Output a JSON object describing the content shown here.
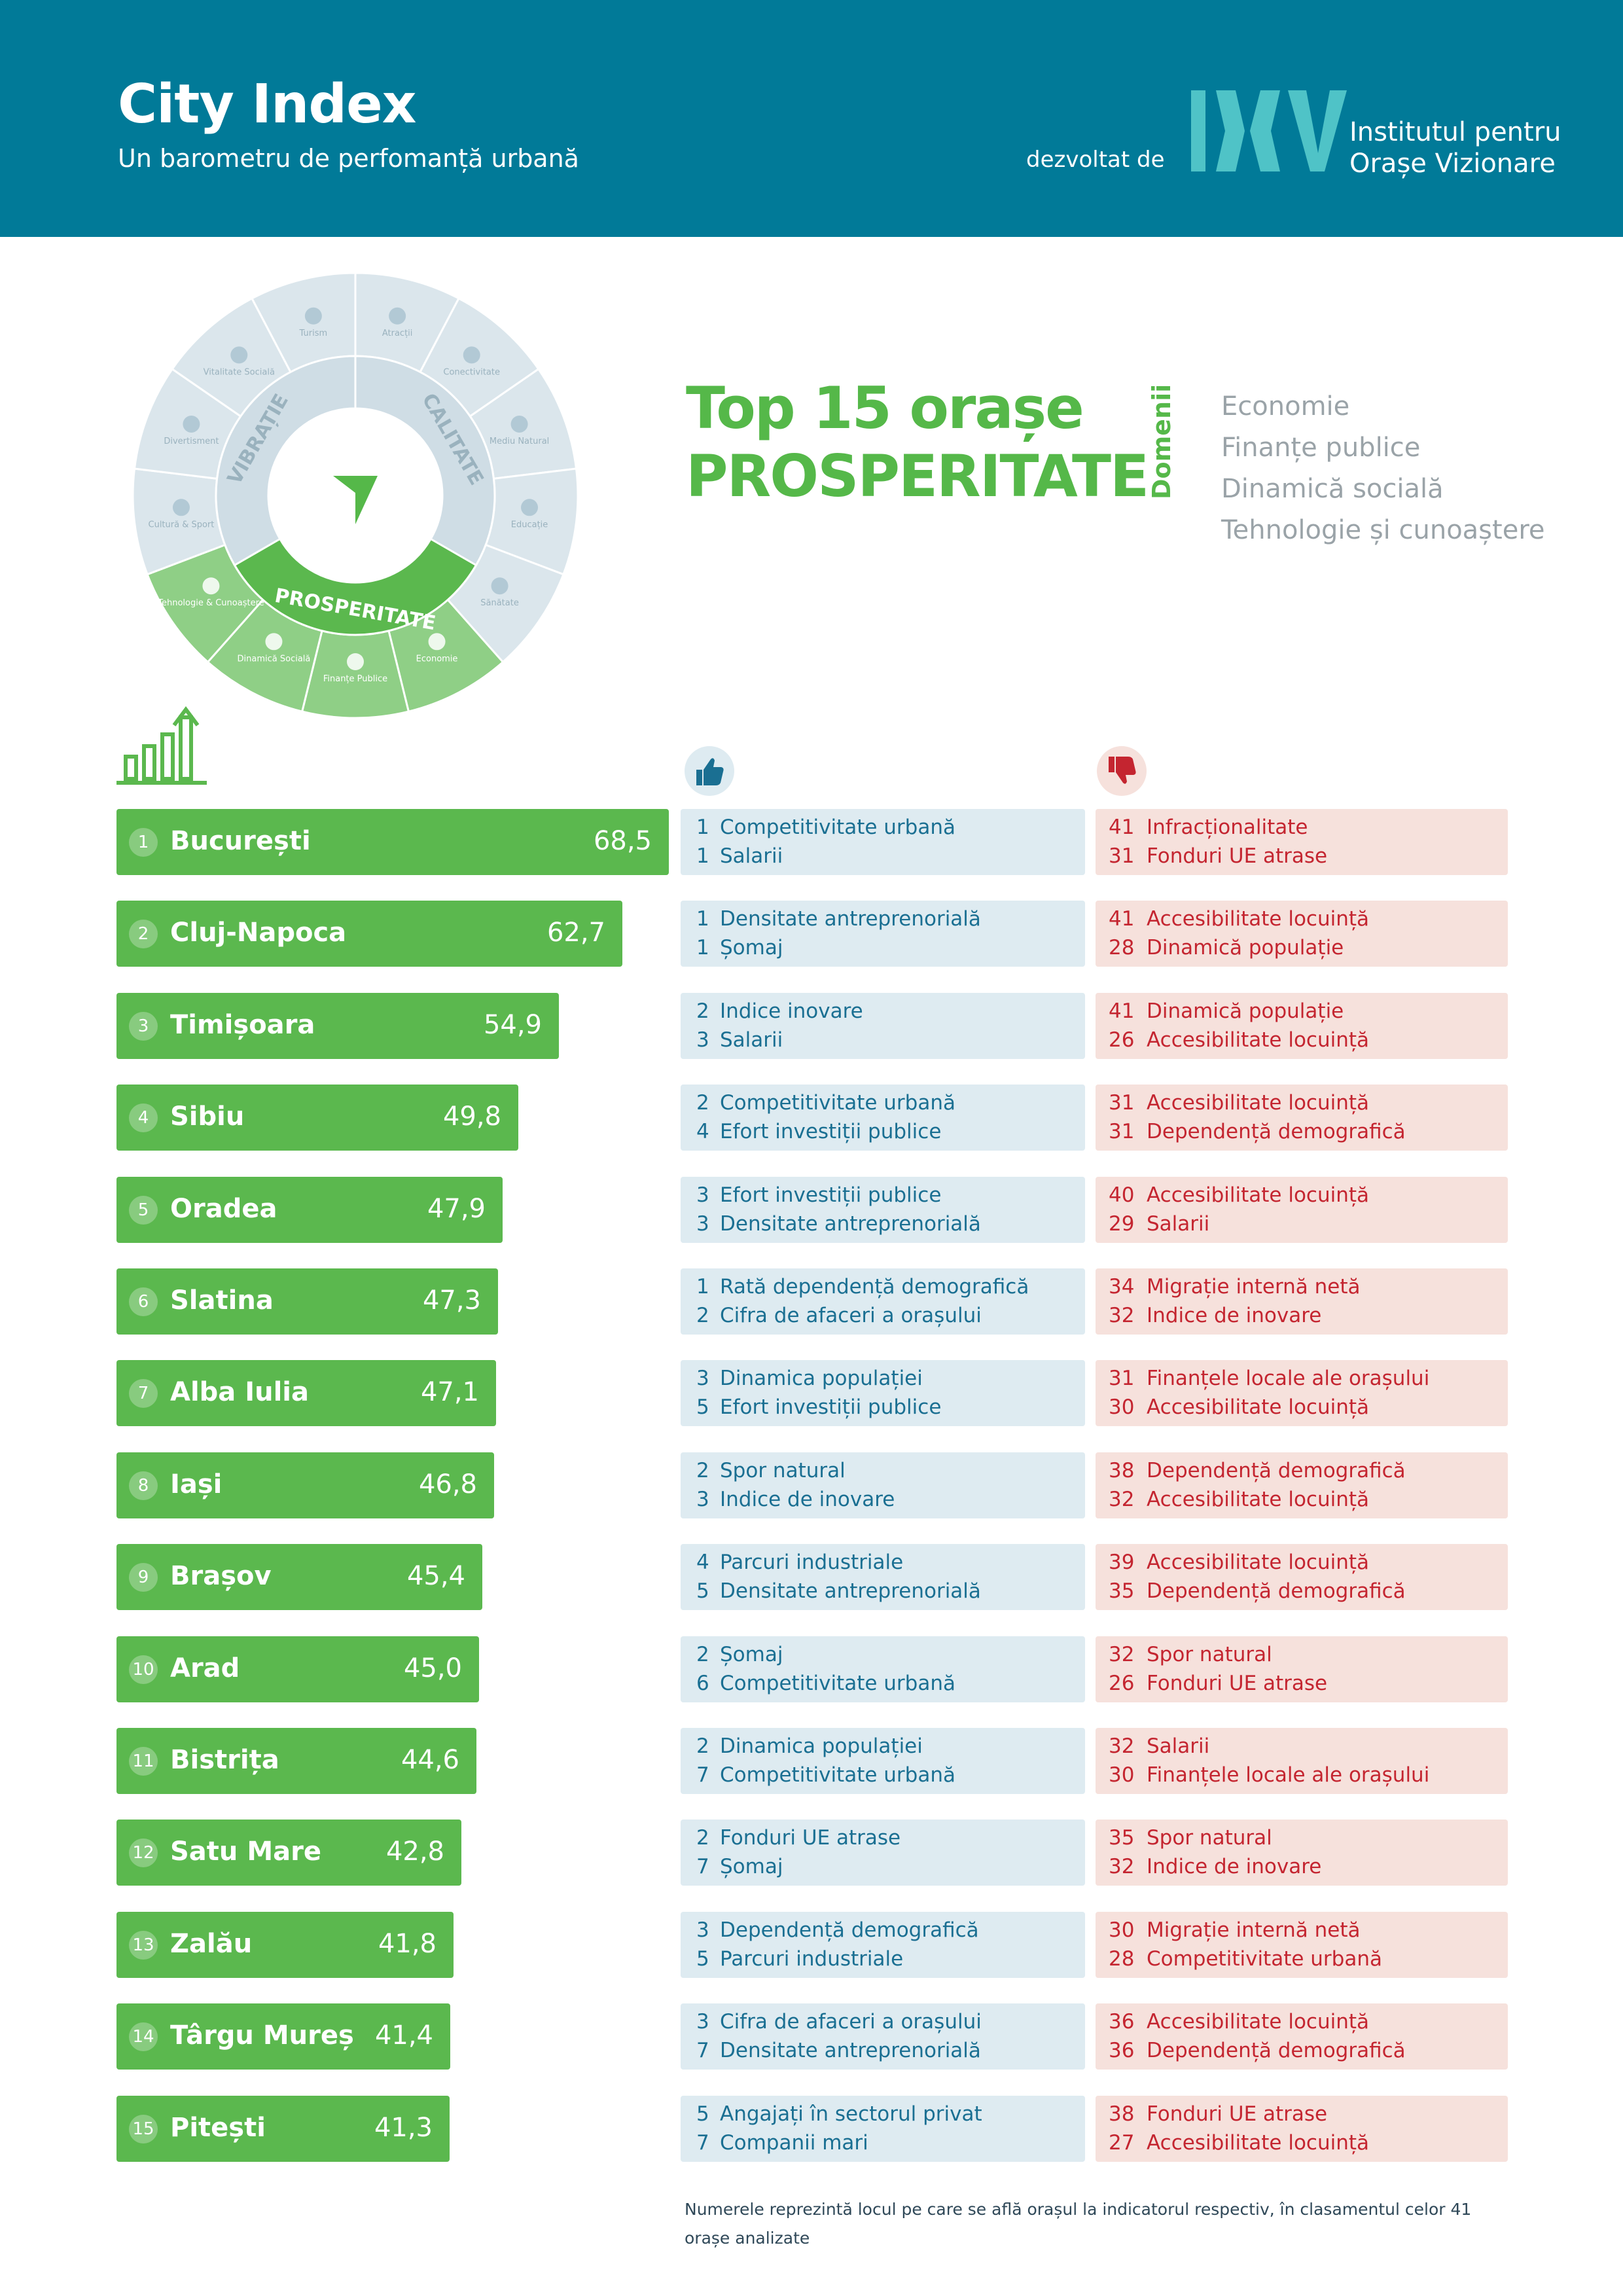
{
  "header": {
    "title": "City Index",
    "subtitle": "Un barometru de perfomanță urbană",
    "developed_by": "dezvoltat de",
    "org_name_line1": "Institutul pentru",
    "org_name_line2": "Orașe Vizionare",
    "logo_text": "IOV",
    "background_color": "#017a98"
  },
  "wheel": {
    "center_icon": "arrow-down-icon",
    "pillars": [
      "VIBRAȚIE",
      "CALITATE",
      "PROSPERITATE"
    ],
    "segments": [
      {
        "label": "Turism",
        "icon": "umbrella-icon"
      },
      {
        "label": "Atracții",
        "icon": "museum-icon"
      },
      {
        "label": "Conectivitate",
        "icon": "bus-icon"
      },
      {
        "label": "Mediu Natural",
        "icon": "tree-icon"
      },
      {
        "label": "Educație",
        "icon": "graduation-cap-icon"
      },
      {
        "label": "Sănătate",
        "icon": "medical-icon"
      },
      {
        "label": "Economie",
        "icon": "bar-chart-icon"
      },
      {
        "label": "Finanțe Publice",
        "icon": "money-icon"
      },
      {
        "label": "Dinamică Socială",
        "icon": "people-icon"
      },
      {
        "label": "Tehnologie & Cunoaștere",
        "icon": "chip-icon"
      },
      {
        "label": "Cultură & Sport",
        "icon": "ball-icon"
      },
      {
        "label": "Divertisment",
        "icon": "party-icon"
      },
      {
        "label": "Vitalitate Socială",
        "icon": "group-icon"
      }
    ]
  },
  "title": {
    "line1": "Top 15 orașe",
    "line2": "PROSPERITATE"
  },
  "domains": {
    "label": "Domenii",
    "items": [
      "Economie",
      "Finanțe publice",
      "Dinamică socială",
      "Tehnologie și cunoaștere"
    ]
  },
  "icons": {
    "ranking": "growth-bars-icon",
    "strengths": "thumbs-up-icon",
    "weaknesses": "thumbs-down-icon"
  },
  "colors": {
    "green": "#5bb84e",
    "title_green": "#55b849",
    "blue_box": "#deebf1",
    "blue_text": "#1a6f92",
    "red_box": "#f6e1dc",
    "red_text": "#c42530"
  },
  "chart_data": {
    "type": "bar",
    "orientation": "horizontal",
    "categories": [
      "București",
      "Cluj-Napoca",
      "Timișoara",
      "Sibiu",
      "Oradea",
      "Slatina",
      "Alba Iulia",
      "Iași",
      "Brașov",
      "Arad",
      "Bistrița",
      "Satu Mare",
      "Zalău",
      "Târgu Mureș",
      "Pitești"
    ],
    "values": [
      68.5,
      62.7,
      54.9,
      49.8,
      47.9,
      47.3,
      47.1,
      46.8,
      45.4,
      45.0,
      44.6,
      42.8,
      41.8,
      41.4,
      41.3
    ]
  },
  "rows": [
    {
      "rank": "1",
      "city": "București",
      "score": "68,5",
      "pos": [
        [
          "1",
          "Competitivitate urbană"
        ],
        [
          "1",
          "Salarii"
        ]
      ],
      "neg": [
        [
          "41",
          "Infracționalitate"
        ],
        [
          "31",
          "Fonduri UE atrase"
        ]
      ]
    },
    {
      "rank": "2",
      "city": "Cluj-Napoca",
      "score": "62,7",
      "pos": [
        [
          "1",
          "Densitate antreprenorială"
        ],
        [
          "1",
          "Șomaj"
        ]
      ],
      "neg": [
        [
          "41",
          "Accesibilitate locuință"
        ],
        [
          "28",
          "Dinamică populație"
        ]
      ]
    },
    {
      "rank": "3",
      "city": "Timișoara",
      "score": "54,9",
      "pos": [
        [
          "2",
          "Indice inovare"
        ],
        [
          "3",
          "Salarii"
        ]
      ],
      "neg": [
        [
          "41",
          "Dinamică populație"
        ],
        [
          "26",
          "Accesibilitate locuință"
        ]
      ]
    },
    {
      "rank": "4",
      "city": "Sibiu",
      "score": "49,8",
      "pos": [
        [
          "2",
          "Competitivitate urbană"
        ],
        [
          "4",
          "Efort investiții publice"
        ]
      ],
      "neg": [
        [
          "31",
          "Accesibilitate locuință"
        ],
        [
          "31",
          "Dependență demografică"
        ]
      ]
    },
    {
      "rank": "5",
      "city": "Oradea",
      "score": "47,9",
      "pos": [
        [
          "3",
          "Efort investiții publice"
        ],
        [
          "3",
          "Densitate antreprenorială"
        ]
      ],
      "neg": [
        [
          "40",
          "Accesibilitate locuință"
        ],
        [
          "29",
          "Salarii"
        ]
      ]
    },
    {
      "rank": "6",
      "city": "Slatina",
      "score": "47,3",
      "pos": [
        [
          "1",
          "Rată dependență demografică"
        ],
        [
          "2",
          "Cifra de afaceri a orașului"
        ]
      ],
      "neg": [
        [
          "34",
          "Migrație internă netă"
        ],
        [
          "32",
          "Indice de inovare"
        ]
      ]
    },
    {
      "rank": "7",
      "city": "Alba Iulia",
      "score": "47,1",
      "pos": [
        [
          "3",
          "Dinamica populației"
        ],
        [
          "5",
          "Efort investiții publice"
        ]
      ],
      "neg": [
        [
          "31",
          "Finanțele locale ale orașului"
        ],
        [
          "30",
          "Accesibilitate locuință"
        ]
      ]
    },
    {
      "rank": "8",
      "city": "Iași",
      "score": "46,8",
      "pos": [
        [
          "2",
          "Spor natural"
        ],
        [
          "3",
          "Indice de inovare"
        ]
      ],
      "neg": [
        [
          "38",
          "Dependență demografică"
        ],
        [
          "32",
          "Accesibilitate locuință"
        ]
      ]
    },
    {
      "rank": "9",
      "city": "Brașov",
      "score": "45,4",
      "pos": [
        [
          "4",
          "Parcuri industriale"
        ],
        [
          "5",
          "Densitate antreprenorială"
        ]
      ],
      "neg": [
        [
          "39",
          "Accesibilitate locuință"
        ],
        [
          "35",
          "Dependență demografică"
        ]
      ]
    },
    {
      "rank": "10",
      "city": "Arad",
      "score": "45,0",
      "pos": [
        [
          "2",
          "Șomaj"
        ],
        [
          "6",
          "Competitivitate urbană"
        ]
      ],
      "neg": [
        [
          "32",
          "Spor natural"
        ],
        [
          "26",
          "Fonduri UE atrase"
        ]
      ]
    },
    {
      "rank": "11",
      "city": "Bistrița",
      "score": "44,6",
      "pos": [
        [
          "2",
          "Dinamica populației"
        ],
        [
          "7",
          "Competitivitate urbană"
        ]
      ],
      "neg": [
        [
          "32",
          "Salarii"
        ],
        [
          "30",
          "Finanțele locale ale orașului"
        ]
      ]
    },
    {
      "rank": "12",
      "city": "Satu Mare",
      "score": "42,8",
      "pos": [
        [
          "2",
          "Fonduri UE atrase"
        ],
        [
          "7",
          "Șomaj"
        ]
      ],
      "neg": [
        [
          "35",
          "Spor natural"
        ],
        [
          "32",
          "Indice de inovare"
        ]
      ]
    },
    {
      "rank": "13",
      "city": "Zalău",
      "score": "41,8",
      "pos": [
        [
          "3",
          "Dependență demografică"
        ],
        [
          "5",
          "Parcuri industriale"
        ]
      ],
      "neg": [
        [
          "30",
          "Migrație internă netă"
        ],
        [
          "28",
          "Competitivitate urbană"
        ]
      ]
    },
    {
      "rank": "14",
      "city": "Târgu Mureș",
      "score": "41,4",
      "pos": [
        [
          "3",
          "Cifra de afaceri a orașului"
        ],
        [
          "7",
          "Densitate antreprenorială"
        ]
      ],
      "neg": [
        [
          "36",
          "Accesibilitate locuință"
        ],
        [
          "36",
          "Dependență demografică"
        ]
      ]
    },
    {
      "rank": "15",
      "city": "Pitești",
      "score": "41,3",
      "pos": [
        [
          "5",
          "Angajați în sectorul privat"
        ],
        [
          "7",
          "Companii mari"
        ]
      ],
      "neg": [
        [
          "38",
          "Fonduri UE atrase"
        ],
        [
          "27",
          "Accesibilitate locuință"
        ]
      ]
    }
  ],
  "footnote": "Numerele reprezintă locul pe care se află orașul la indicatorul respectiv, în clasamentul celor 41 orașe analizate"
}
